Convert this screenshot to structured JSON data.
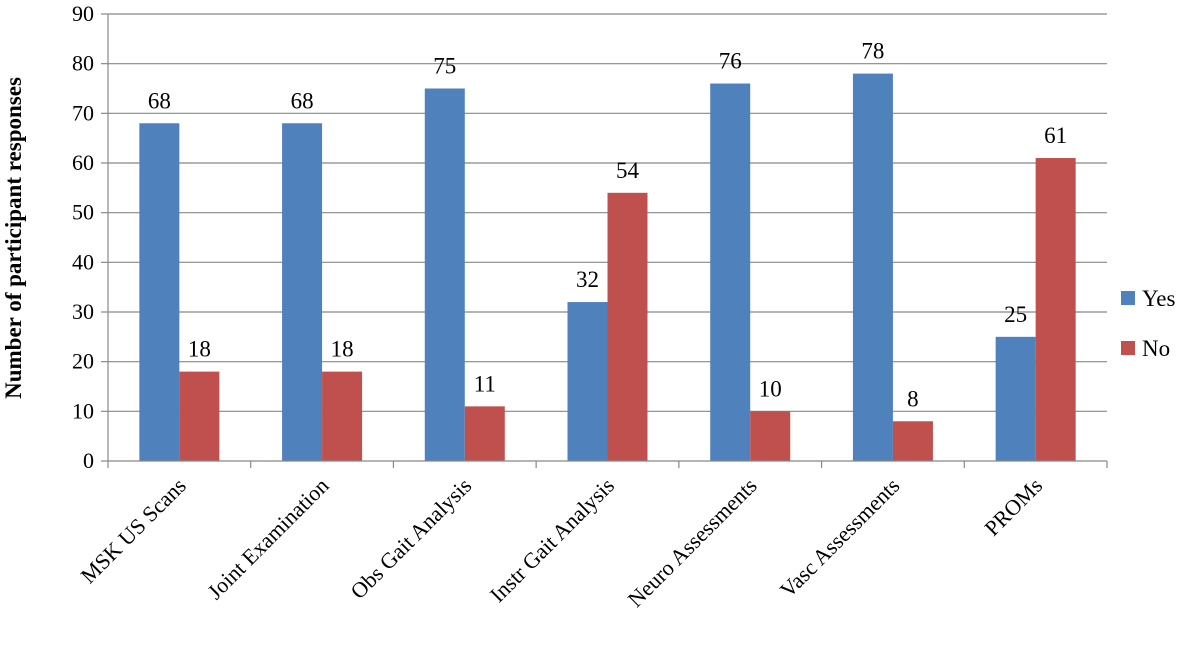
{
  "chart_data": {
    "type": "bar",
    "categories": [
      "MSK US Scans",
      "Joint Examination",
      "Obs Gait Analysis",
      "Instr Gait Analysis",
      "Neuro Assessments",
      "Vasc Assessments",
      "PROMs"
    ],
    "series": [
      {
        "name": "Yes",
        "color": "#4F81BD",
        "values": [
          68,
          68,
          75,
          32,
          76,
          78,
          25
        ]
      },
      {
        "name": "No",
        "color": "#C0504D",
        "values": [
          18,
          18,
          11,
          54,
          10,
          8,
          61
        ]
      }
    ],
    "ylabel": "Number of participant responses",
    "ylim": [
      0,
      90
    ],
    "yticks": [
      0,
      10,
      20,
      30,
      40,
      50,
      60,
      70,
      80,
      90
    ],
    "grid": true,
    "legend_position": "right",
    "data_labels": true
  }
}
